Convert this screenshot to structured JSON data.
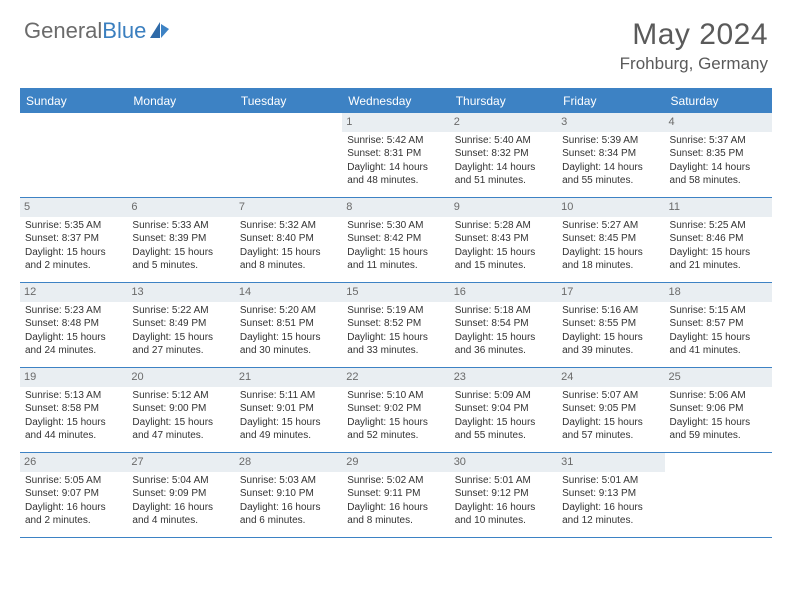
{
  "brand": {
    "part1": "General",
    "part2": "Blue"
  },
  "title": "May 2024",
  "location": "Frohburg, Germany",
  "colors": {
    "header_blue": "#3d82c4",
    "daynum_bg": "#e9eef2",
    "text_gray": "#5a5a5a"
  },
  "weekdays": [
    "Sunday",
    "Monday",
    "Tuesday",
    "Wednesday",
    "Thursday",
    "Friday",
    "Saturday"
  ],
  "weeks": [
    [
      {
        "n": "",
        "lines": []
      },
      {
        "n": "",
        "lines": []
      },
      {
        "n": "",
        "lines": []
      },
      {
        "n": "1",
        "lines": [
          "Sunrise: 5:42 AM",
          "Sunset: 8:31 PM",
          "Daylight: 14 hours",
          "and 48 minutes."
        ]
      },
      {
        "n": "2",
        "lines": [
          "Sunrise: 5:40 AM",
          "Sunset: 8:32 PM",
          "Daylight: 14 hours",
          "and 51 minutes."
        ]
      },
      {
        "n": "3",
        "lines": [
          "Sunrise: 5:39 AM",
          "Sunset: 8:34 PM",
          "Daylight: 14 hours",
          "and 55 minutes."
        ]
      },
      {
        "n": "4",
        "lines": [
          "Sunrise: 5:37 AM",
          "Sunset: 8:35 PM",
          "Daylight: 14 hours",
          "and 58 minutes."
        ]
      }
    ],
    [
      {
        "n": "5",
        "lines": [
          "Sunrise: 5:35 AM",
          "Sunset: 8:37 PM",
          "Daylight: 15 hours",
          "and 2 minutes."
        ]
      },
      {
        "n": "6",
        "lines": [
          "Sunrise: 5:33 AM",
          "Sunset: 8:39 PM",
          "Daylight: 15 hours",
          "and 5 minutes."
        ]
      },
      {
        "n": "7",
        "lines": [
          "Sunrise: 5:32 AM",
          "Sunset: 8:40 PM",
          "Daylight: 15 hours",
          "and 8 minutes."
        ]
      },
      {
        "n": "8",
        "lines": [
          "Sunrise: 5:30 AM",
          "Sunset: 8:42 PM",
          "Daylight: 15 hours",
          "and 11 minutes."
        ]
      },
      {
        "n": "9",
        "lines": [
          "Sunrise: 5:28 AM",
          "Sunset: 8:43 PM",
          "Daylight: 15 hours",
          "and 15 minutes."
        ]
      },
      {
        "n": "10",
        "lines": [
          "Sunrise: 5:27 AM",
          "Sunset: 8:45 PM",
          "Daylight: 15 hours",
          "and 18 minutes."
        ]
      },
      {
        "n": "11",
        "lines": [
          "Sunrise: 5:25 AM",
          "Sunset: 8:46 PM",
          "Daylight: 15 hours",
          "and 21 minutes."
        ]
      }
    ],
    [
      {
        "n": "12",
        "lines": [
          "Sunrise: 5:23 AM",
          "Sunset: 8:48 PM",
          "Daylight: 15 hours",
          "and 24 minutes."
        ]
      },
      {
        "n": "13",
        "lines": [
          "Sunrise: 5:22 AM",
          "Sunset: 8:49 PM",
          "Daylight: 15 hours",
          "and 27 minutes."
        ]
      },
      {
        "n": "14",
        "lines": [
          "Sunrise: 5:20 AM",
          "Sunset: 8:51 PM",
          "Daylight: 15 hours",
          "and 30 minutes."
        ]
      },
      {
        "n": "15",
        "lines": [
          "Sunrise: 5:19 AM",
          "Sunset: 8:52 PM",
          "Daylight: 15 hours",
          "and 33 minutes."
        ]
      },
      {
        "n": "16",
        "lines": [
          "Sunrise: 5:18 AM",
          "Sunset: 8:54 PM",
          "Daylight: 15 hours",
          "and 36 minutes."
        ]
      },
      {
        "n": "17",
        "lines": [
          "Sunrise: 5:16 AM",
          "Sunset: 8:55 PM",
          "Daylight: 15 hours",
          "and 39 minutes."
        ]
      },
      {
        "n": "18",
        "lines": [
          "Sunrise: 5:15 AM",
          "Sunset: 8:57 PM",
          "Daylight: 15 hours",
          "and 41 minutes."
        ]
      }
    ],
    [
      {
        "n": "19",
        "lines": [
          "Sunrise: 5:13 AM",
          "Sunset: 8:58 PM",
          "Daylight: 15 hours",
          "and 44 minutes."
        ]
      },
      {
        "n": "20",
        "lines": [
          "Sunrise: 5:12 AM",
          "Sunset: 9:00 PM",
          "Daylight: 15 hours",
          "and 47 minutes."
        ]
      },
      {
        "n": "21",
        "lines": [
          "Sunrise: 5:11 AM",
          "Sunset: 9:01 PM",
          "Daylight: 15 hours",
          "and 49 minutes."
        ]
      },
      {
        "n": "22",
        "lines": [
          "Sunrise: 5:10 AM",
          "Sunset: 9:02 PM",
          "Daylight: 15 hours",
          "and 52 minutes."
        ]
      },
      {
        "n": "23",
        "lines": [
          "Sunrise: 5:09 AM",
          "Sunset: 9:04 PM",
          "Daylight: 15 hours",
          "and 55 minutes."
        ]
      },
      {
        "n": "24",
        "lines": [
          "Sunrise: 5:07 AM",
          "Sunset: 9:05 PM",
          "Daylight: 15 hours",
          "and 57 minutes."
        ]
      },
      {
        "n": "25",
        "lines": [
          "Sunrise: 5:06 AM",
          "Sunset: 9:06 PM",
          "Daylight: 15 hours",
          "and 59 minutes."
        ]
      }
    ],
    [
      {
        "n": "26",
        "lines": [
          "Sunrise: 5:05 AM",
          "Sunset: 9:07 PM",
          "Daylight: 16 hours",
          "and 2 minutes."
        ]
      },
      {
        "n": "27",
        "lines": [
          "Sunrise: 5:04 AM",
          "Sunset: 9:09 PM",
          "Daylight: 16 hours",
          "and 4 minutes."
        ]
      },
      {
        "n": "28",
        "lines": [
          "Sunrise: 5:03 AM",
          "Sunset: 9:10 PM",
          "Daylight: 16 hours",
          "and 6 minutes."
        ]
      },
      {
        "n": "29",
        "lines": [
          "Sunrise: 5:02 AM",
          "Sunset: 9:11 PM",
          "Daylight: 16 hours",
          "and 8 minutes."
        ]
      },
      {
        "n": "30",
        "lines": [
          "Sunrise: 5:01 AM",
          "Sunset: 9:12 PM",
          "Daylight: 16 hours",
          "and 10 minutes."
        ]
      },
      {
        "n": "31",
        "lines": [
          "Sunrise: 5:01 AM",
          "Sunset: 9:13 PM",
          "Daylight: 16 hours",
          "and 12 minutes."
        ]
      },
      {
        "n": "",
        "lines": []
      }
    ]
  ]
}
